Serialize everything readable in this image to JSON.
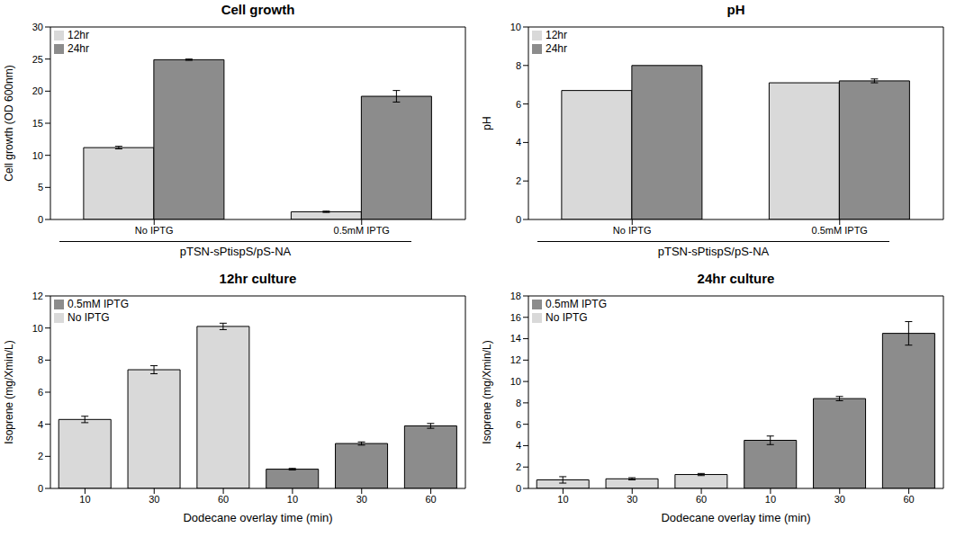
{
  "chart_data": [
    {
      "type": "bar",
      "title": "Cell growth",
      "categories": [
        "No IPTG",
        "0.5mM IPTG"
      ],
      "series": [
        {
          "name": "12hr",
          "color": "#d9d9d9",
          "values": [
            11.2,
            1.2
          ],
          "errors": [
            0.2,
            0.1
          ]
        },
        {
          "name": "24hr",
          "color": "#8c8c8c",
          "values": [
            24.9,
            19.2
          ],
          "errors": [
            0.1,
            0.9
          ]
        }
      ],
      "ylim": [
        0,
        30
      ],
      "yticks": [
        0,
        5,
        10,
        15,
        20,
        25,
        30
      ],
      "ylabel": "Cell growth (OD 600nm)",
      "xlabel": "pTSN-sPtispS/pS-NA",
      "legend": "upper left"
    },
    {
      "type": "bar",
      "title": "pH",
      "categories": [
        "No IPTG",
        "0.5mM IPTG"
      ],
      "series": [
        {
          "name": "12hr",
          "color": "#d9d9d9",
          "values": [
            6.7,
            7.1
          ],
          "errors": [
            0,
            0
          ]
        },
        {
          "name": "24hr",
          "color": "#8c8c8c",
          "values": [
            8.0,
            7.2
          ],
          "errors": [
            0,
            0.1
          ]
        }
      ],
      "ylim": [
        0,
        10
      ],
      "yticks": [
        0,
        2,
        4,
        6,
        8,
        10
      ],
      "ylabel": "pH",
      "xlabel": "pTSN-sPtispS/pS-NA",
      "legend": "upper left"
    },
    {
      "type": "bar",
      "title": "12hr culture",
      "categories": [
        "10",
        "30",
        "60",
        "10",
        "30",
        "60"
      ],
      "series": [
        {
          "name": "No IPTG",
          "color": "#d9d9d9",
          "values": [
            4.3,
            7.4,
            10.1,
            null,
            null,
            null
          ],
          "errors": [
            0.2,
            0.25,
            0.2,
            null,
            null,
            null
          ]
        },
        {
          "name": "0.5mM IPTG",
          "color": "#8c8c8c",
          "values": [
            null,
            null,
            null,
            1.2,
            2.8,
            3.9
          ],
          "errors": [
            null,
            null,
            null,
            0.05,
            0.1,
            0.15
          ]
        }
      ],
      "ylim": [
        0,
        12
      ],
      "yticks": [
        0,
        2,
        4,
        6,
        8,
        10,
        12
      ],
      "ylabel": "Isoprene (mg/Xmin/L)",
      "xlabel": "Dodecane overlay time (min)",
      "legend": "upper left"
    },
    {
      "type": "bar",
      "title": "24hr culture",
      "categories": [
        "10",
        "30",
        "60",
        "10",
        "30",
        "60"
      ],
      "series": [
        {
          "name": "No IPTG",
          "color": "#d9d9d9",
          "values": [
            0.8,
            0.9,
            1.3,
            null,
            null,
            null
          ],
          "errors": [
            0.3,
            0.1,
            0.1,
            null,
            null,
            null
          ]
        },
        {
          "name": "0.5mM IPTG",
          "color": "#8c8c8c",
          "values": [
            null,
            null,
            null,
            4.5,
            8.4,
            14.5
          ],
          "errors": [
            null,
            null,
            null,
            0.4,
            0.2,
            1.1
          ]
        }
      ],
      "ylim": [
        0,
        18
      ],
      "yticks": [
        0,
        2,
        4,
        6,
        8,
        10,
        12,
        14,
        16,
        18
      ],
      "ylabel": "Isoprene (mg/Xmin/L)",
      "xlabel": "Dodecane overlay time (min)",
      "legend": "upper left"
    }
  ]
}
